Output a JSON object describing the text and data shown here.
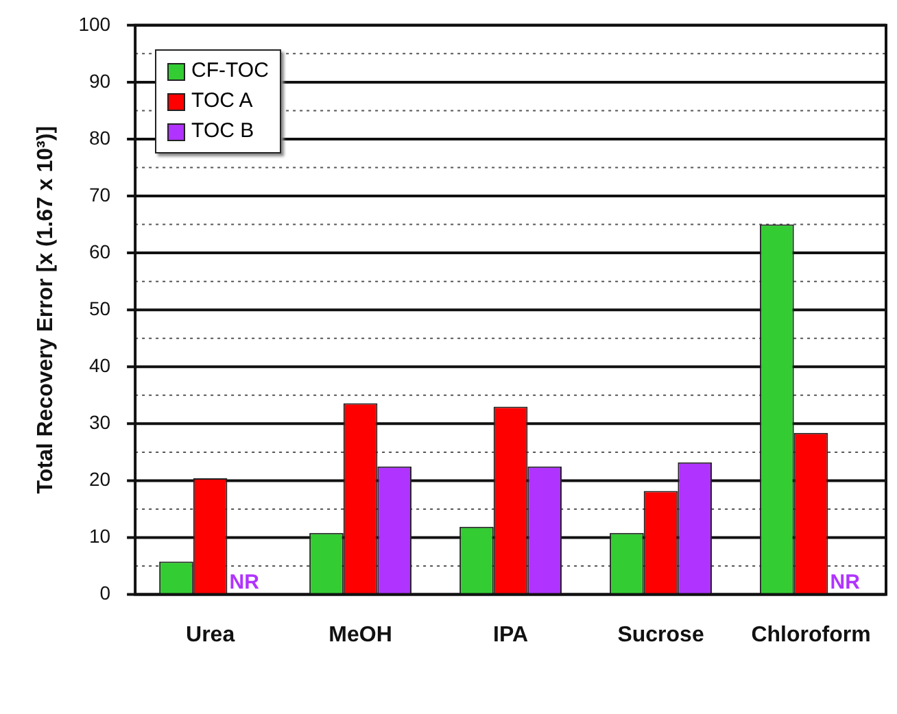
{
  "chart_data": {
    "type": "bar",
    "ylabel": "Total Recovery Error [x (1.67 x 10³)]",
    "categories": [
      "Urea",
      "MeOH",
      "IPA",
      "Sucrose",
      "Chloroform"
    ],
    "series": [
      {
        "name": "CF-TOC",
        "color": "#33cc33",
        "values": [
          5.8,
          10.8,
          11.9,
          10.8,
          65
        ]
      },
      {
        "name": "TOC A",
        "color": "#ff0000",
        "values": [
          20.4,
          33.6,
          33,
          18.2,
          28.4
        ]
      },
      {
        "name": "TOC B",
        "color": "#b033ff",
        "values": [
          null,
          22.5,
          22.5,
          23.2,
          null
        ],
        "value_labels": [
          "NR",
          null,
          null,
          null,
          "NR"
        ]
      }
    ],
    "ylim": [
      0,
      100
    ],
    "yticks": [
      0,
      {
        "value": 5,
        "label": null
      },
      10,
      {
        "value": 15,
        "label": null
      },
      20,
      {
        "value": 25,
        "label": null
      },
      30,
      {
        "value": 35,
        "label": null
      },
      40,
      {
        "value": 45,
        "label": null
      },
      50,
      {
        "value": 55,
        "label": null
      },
      60,
      {
        "value": 65,
        "label": null
      },
      70,
      {
        "value": 75,
        "label": null
      },
      80,
      {
        "value": 85,
        "label": null
      },
      90,
      {
        "value": 95,
        "label": null
      },
      100
    ],
    "grid": true,
    "legend": "top left"
  }
}
